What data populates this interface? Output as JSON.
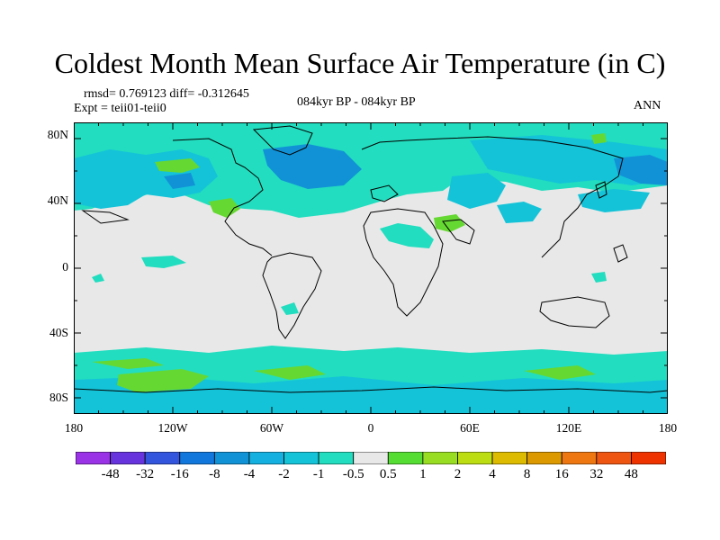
{
  "title": "Coldest Month Mean Surface Air Temperature (in C)",
  "stats": "rmsd= 0.769123 diff= -0.312645",
  "experiment": "Expt = teii01-teii0",
  "period": "084kyr BP - 084kyr BP",
  "season": "ANN",
  "colors": {
    "neutral": "#e8e8e8",
    "cool_light": "#22ddbf",
    "cool": "#14c3d8",
    "cold": "#1192d6",
    "warm_light": "#66d832"
  },
  "map_data": {
    "lat_ticks": [
      "80N",
      "40N",
      "0",
      "40S",
      "80S"
    ],
    "lon_ticks": [
      "180",
      "120W",
      "60W",
      "0",
      "60E",
      "120E",
      "180"
    ]
  },
  "colorbar": {
    "labels": [
      "-48",
      "-32",
      "-16",
      "-8",
      "-4",
      "-2",
      "-1",
      "-0.5",
      "0.5",
      "1",
      "2",
      "4",
      "8",
      "16",
      "32",
      "48"
    ],
    "colors": [
      "#9a33e6",
      "#6633dd",
      "#3355dd",
      "#1177dd",
      "#1192d6",
      "#14b0e0",
      "#14c3d8",
      "#22ddbf",
      "#e8e8e8",
      "#55dd33",
      "#99dd22",
      "#bbdd11",
      "#ddbb00",
      "#dd9900",
      "#ee7711",
      "#ee5511",
      "#ee3300"
    ]
  }
}
